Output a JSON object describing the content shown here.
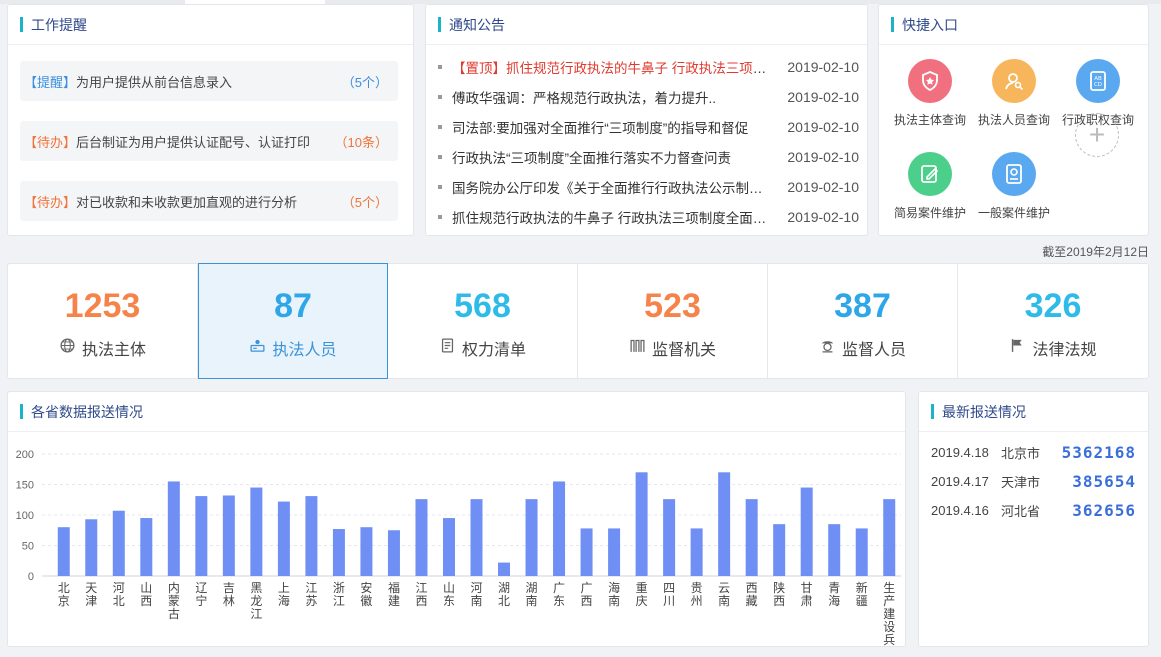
{
  "reminders": {
    "title": "工作提醒",
    "items": [
      {
        "tag": "【提醒】",
        "text": "为用户提供从前台信息录入",
        "count": "（5个）",
        "tone": "blue"
      },
      {
        "tag": "【待办】",
        "text": "后台制证为用户提供认证配号、认证打印",
        "count": "（10条）",
        "tone": "orange"
      },
      {
        "tag": "【待办】",
        "text": "对已收款和未收款更加直观的进行分析",
        "count": "（5个）",
        "tone": "orange"
      }
    ]
  },
  "notices": {
    "title": "通知公告",
    "items": [
      {
        "prefix": "【置顶】",
        "text": "抓住规范行政执法的牛鼻子 行政执法三项制度全面推行",
        "date": "2019-02-10"
      },
      {
        "prefix": "",
        "text": "傅政华强调：严格规范行政执法，着力提升..",
        "date": "2019-02-10"
      },
      {
        "prefix": "",
        "text": "司法部:要加强对全面推行“三项制度”的指导和督促",
        "date": "2019-02-10"
      },
      {
        "prefix": "",
        "text": "行政执法“三项制度”全面推行落实不力督查问责",
        "date": "2019-02-10"
      },
      {
        "prefix": "",
        "text": "国务院办公厅印发《关于全面推行行政执法公示制度》",
        "date": "2019-02-10"
      },
      {
        "prefix": "",
        "text": "抓住规范行政执法的牛鼻子 行政执法三项制度全面推行",
        "date": "2019-02-10"
      }
    ]
  },
  "quick": {
    "title": "快捷入口",
    "items": [
      {
        "label": "执法主体查询",
        "icon": "shield-star-icon",
        "color": "#f0707f"
      },
      {
        "label": "执法人员查询",
        "icon": "user-search-icon",
        "color": "#f7b55c"
      },
      {
        "label": "行政职权查询",
        "icon": "abcd-card-icon",
        "color": "#5aa8ef"
      },
      {
        "label": "简易案件维护",
        "icon": "edit-doc-icon",
        "color": "#4ccf8a"
      },
      {
        "label": "一般案件维护",
        "icon": "case-doc-icon",
        "color": "#5aa8ef"
      }
    ],
    "add_icon": "plus-icon"
  },
  "as_of": "截至2019年2月12日",
  "stats": [
    {
      "value": "1253",
      "label": "执法主体",
      "icon": "globe-icon",
      "color": "#f5834a"
    },
    {
      "value": "87",
      "label": "执法人员",
      "icon": "badge-person-icon",
      "color": "#2ea6e8",
      "active": true
    },
    {
      "value": "568",
      "label": "权力清单",
      "icon": "list-doc-icon",
      "color": "#2ebbe8"
    },
    {
      "value": "523",
      "label": "监督机关",
      "icon": "building-icon",
      "color": "#f5834a"
    },
    {
      "value": "387",
      "label": "监督人员",
      "icon": "officer-icon",
      "color": "#2ea6e8"
    },
    {
      "value": "326",
      "label": "法律法规",
      "icon": "flag-icon",
      "color": "#2ebbe8"
    }
  ],
  "chart_panel_title": "各省数据报送情况",
  "chart_data": {
    "type": "bar",
    "title": "",
    "xlabel": "",
    "ylabel": "",
    "ylim": [
      0,
      200
    ],
    "yticks": [
      "0",
      "50",
      "100",
      "150",
      "200"
    ],
    "bar_color": "#6f8ff5",
    "categories": [
      "北京",
      "天津",
      "河北",
      "山西",
      "内蒙古",
      "辽宁",
      "吉林",
      "黑龙江",
      "上海",
      "江苏",
      "浙江",
      "安徽",
      "福建",
      "江西",
      "山东",
      "河南",
      "湖北",
      "湖南",
      "广东",
      "广西",
      "海南",
      "重庆",
      "四川",
      "贵州",
      "云南",
      "西藏",
      "陕西",
      "甘肃",
      "青海",
      "新疆",
      "生产建设兵团"
    ],
    "values": [
      80,
      93,
      107,
      95,
      155,
      131,
      132,
      145,
      122,
      131,
      77,
      80,
      75,
      126,
      95,
      126,
      22,
      126,
      155,
      78,
      78,
      170,
      126,
      78,
      170,
      126,
      85,
      145,
      85,
      78,
      126
    ]
  },
  "latest": {
    "title": "最新报送情况",
    "rows": [
      {
        "date": "2019.4.18",
        "place": "北京市",
        "value": "5362168"
      },
      {
        "date": "2019.4.17",
        "place": "天津市",
        "value": "385654"
      },
      {
        "date": "2019.4.16",
        "place": "河北省",
        "value": "362656"
      }
    ]
  }
}
